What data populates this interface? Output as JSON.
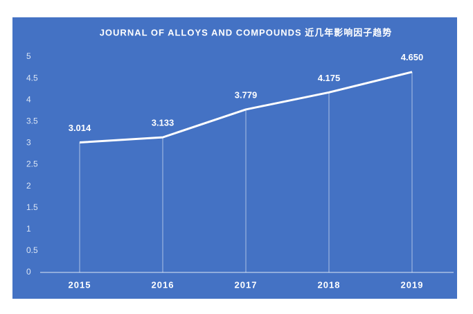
{
  "chart_data": {
    "type": "line",
    "title": "JOURNAL OF ALLOYS AND COMPOUNDS 近几年影响因子趋势",
    "categories": [
      "2015",
      "2016",
      "2017",
      "2018",
      "2019"
    ],
    "values": [
      3.014,
      3.133,
      3.779,
      4.175,
      4.65
    ],
    "value_labels": [
      "3.014",
      "3.133",
      "3.779",
      "4.175",
      "4.650"
    ],
    "color": "#ffffff",
    "ylim": [
      0,
      5
    ],
    "yticks": [
      0,
      0.5,
      1,
      1.5,
      2,
      2.5,
      3,
      3.5,
      4,
      4.5,
      5
    ],
    "grid": false
  }
}
